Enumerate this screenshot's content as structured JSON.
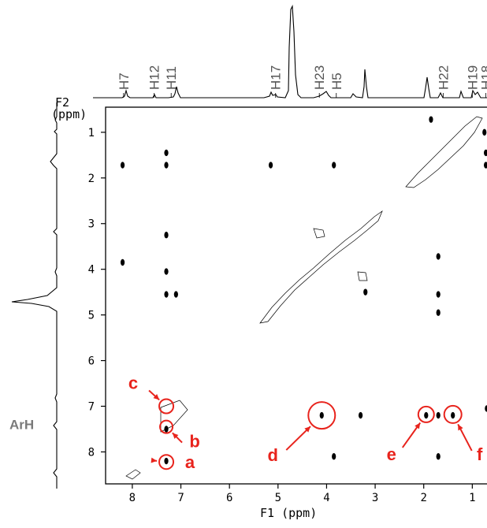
{
  "chart_data": {
    "type": "scatter",
    "title": "",
    "xlabel": "F1 (ppm)",
    "ylabel_line1": "F2",
    "ylabel_line2": "(ppm)",
    "xlim": [
      8.55,
      0.6
    ],
    "ylim": [
      0.45,
      8.7
    ],
    "x_ticks": [
      8,
      7,
      6,
      5,
      4,
      3,
      2,
      1
    ],
    "y_ticks": [
      1,
      2,
      3,
      4,
      5,
      6,
      7,
      8
    ],
    "proton_labels": [
      {
        "text": "H7",
        "ppm": 8.18
      },
      {
        "text": "H12",
        "ppm": 7.55
      },
      {
        "text": "H11",
        "ppm": 7.2
      },
      {
        "text": "H17",
        "ppm": 5.05
      },
      {
        "text": "H23",
        "ppm": 4.15
      },
      {
        "text": "H5",
        "ppm": 3.8
      },
      {
        "text": "H22",
        "ppm": 1.6
      },
      {
        "text": "H19",
        "ppm": 1.0
      },
      {
        "text": "H18",
        "ppm": 0.72
      }
    ],
    "side_label": {
      "text": "ArH",
      "ppm": 7.4
    },
    "cross_peaks": [
      {
        "x": 8.2,
        "y": 1.72
      },
      {
        "x": 8.2,
        "y": 3.85
      },
      {
        "x": 7.3,
        "y": 1.72
      },
      {
        "x": 7.3,
        "y": 1.45
      },
      {
        "x": 7.3,
        "y": 3.25
      },
      {
        "x": 7.3,
        "y": 4.05
      },
      {
        "x": 7.3,
        "y": 4.55
      },
      {
        "x": 7.1,
        "y": 4.55
      },
      {
        "x": 5.15,
        "y": 1.72
      },
      {
        "x": 3.85,
        "y": 1.72
      },
      {
        "x": 3.85,
        "y": 8.1
      },
      {
        "x": 4.1,
        "y": 7.2
      },
      {
        "x": 3.3,
        "y": 7.2
      },
      {
        "x": 1.7,
        "y": 3.72
      },
      {
        "x": 1.7,
        "y": 4.55
      },
      {
        "x": 1.7,
        "y": 4.95
      },
      {
        "x": 1.95,
        "y": 7.2
      },
      {
        "x": 1.7,
        "y": 7.2
      },
      {
        "x": 1.4,
        "y": 7.2
      },
      {
        "x": 1.7,
        "y": 8.1
      },
      {
        "x": 1.85,
        "y": 0.72
      },
      {
        "x": 0.72,
        "y": 1.72
      },
      {
        "x": 0.75,
        "y": 1.0
      },
      {
        "x": 0.72,
        "y": 1.45
      },
      {
        "x": 3.2,
        "y": 4.5
      },
      {
        "x": 7.3,
        "y": 7.5
      },
      {
        "x": 7.3,
        "y": 8.2
      },
      {
        "x": 0.7,
        "y": 7.05
      }
    ],
    "annotations": [
      {
        "text": "a",
        "x": 7.3,
        "y": 8.22
      },
      {
        "text": "b",
        "x": 7.3,
        "y": 7.45
      },
      {
        "text": "c",
        "x": 7.3,
        "y": 7.0
      },
      {
        "text": "d",
        "x": 4.1,
        "y": 7.2
      },
      {
        "text": "e",
        "x": 1.95,
        "y": 7.18
      },
      {
        "text": "f",
        "x": 1.4,
        "y": 7.18
      }
    ],
    "colors": {
      "annotation": "#e8231c",
      "peak_label": "#555555",
      "side_label": "#7a7a7a",
      "trace": "#000000"
    }
  }
}
